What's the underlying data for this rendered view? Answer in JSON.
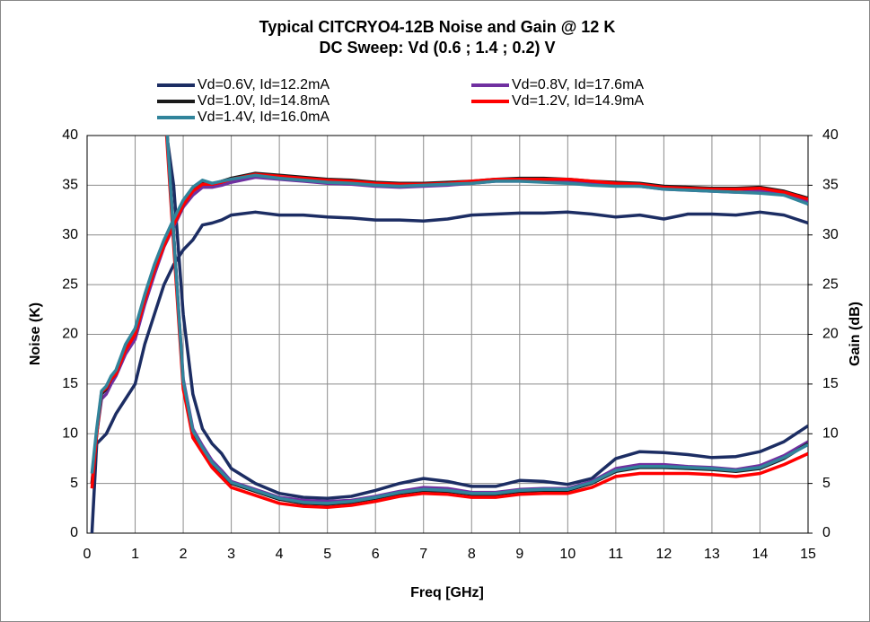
{
  "chart_data": {
    "type": "line",
    "title": "Typical CITCRYO4-12B  Noise and Gain @ 12 K",
    "subtitle": "DC Sweep: Vd (0.6 ; 1.4 ; 0.2) V",
    "xlabel": "Freq [GHz]",
    "ylabel": "Noise (K)",
    "y2label": "Gain (dB)",
    "x": [
      0.1,
      0.2,
      0.3,
      0.4,
      0.5,
      0.6,
      0.8,
      1,
      1.2,
      1.4,
      1.6,
      1.8,
      2,
      2.2,
      2.4,
      2.6,
      2.8,
      3,
      3.5,
      4,
      4.5,
      5,
      5.5,
      6,
      6.5,
      7,
      7.5,
      8,
      8.5,
      9,
      9.5,
      10,
      10.5,
      11,
      11.5,
      12,
      12.5,
      13,
      13.5,
      14,
      14.5,
      15
    ],
    "xlim": [
      0,
      15
    ],
    "xticks": [
      0,
      1,
      2,
      3,
      4,
      5,
      6,
      7,
      8,
      9,
      10,
      11,
      12,
      13,
      14,
      15
    ],
    "ylim": [
      0,
      40
    ],
    "yticks": [
      0,
      5,
      10,
      15,
      20,
      25,
      30,
      35,
      40
    ],
    "y2lim": [
      0,
      40
    ],
    "y2ticks": [
      0,
      5,
      10,
      15,
      20,
      25,
      30,
      35,
      40
    ],
    "grid": true,
    "series": [
      {
        "name": "Vd=0.6V, Id=12.2mA",
        "color": "#1c2d63",
        "values": [
          null,
          null,
          null,
          null,
          null,
          null,
          null,
          null,
          null,
          null,
          42,
          35,
          22,
          14,
          10.5,
          9,
          8,
          6.5,
          5,
          4,
          3.6,
          3.5,
          3.7,
          4.3,
          5,
          5.5,
          5.2,
          4.7,
          4.7,
          5.3,
          5.2,
          4.9,
          5.5,
          7.5,
          8.2,
          8.1,
          7.9,
          7.6,
          7.7,
          8.2,
          9.2,
          10.8
        ],
        "y2_values": [
          0,
          9,
          9.5,
          10,
          11,
          12,
          13.5,
          15,
          19,
          22,
          25,
          27,
          28.5,
          29.5,
          31,
          31.2,
          31.5,
          32,
          32.3,
          32,
          32,
          31.8,
          31.7,
          31.5,
          31.5,
          31.4,
          31.6,
          32,
          32.1,
          32.2,
          32.2,
          32.3,
          32.1,
          31.8,
          32,
          31.6,
          32.1,
          32.1,
          32,
          32.3,
          32,
          31.2
        ]
      },
      {
        "name": "Vd=0.8V, Id=17.6mA",
        "color": "#7030a0",
        "values": [
          null,
          null,
          null,
          null,
          null,
          null,
          null,
          null,
          null,
          null,
          45,
          30,
          15.5,
          10.5,
          8.8,
          7.3,
          6.3,
          5.2,
          4.4,
          3.6,
          3.3,
          3.2,
          3.3,
          3.7,
          4.2,
          4.6,
          4.5,
          4.1,
          4.1,
          4.4,
          4.5,
          4.5,
          5.2,
          6.5,
          6.9,
          6.9,
          6.7,
          6.6,
          6.4,
          6.8,
          7.8,
          9.2
        ],
        "y2_values": [
          5,
          10,
          13.5,
          14,
          15,
          15.8,
          18,
          19.5,
          23,
          26,
          28.8,
          30.8,
          32.8,
          34,
          34.8,
          34.8,
          35,
          35.3,
          35.8,
          35.6,
          35.4,
          35.2,
          35.1,
          34.9,
          34.8,
          34.9,
          35,
          35.2,
          35.4,
          35.4,
          35.4,
          35.3,
          35.1,
          35,
          34.9,
          34.6,
          34.5,
          34.4,
          34.3,
          34.4,
          34,
          33.4
        ]
      },
      {
        "name": "Vd=1.0V, Id=14.8mA",
        "color": "#1a1a1a",
        "values": [
          null,
          null,
          null,
          null,
          null,
          null,
          null,
          null,
          null,
          null,
          45,
          30,
          15,
          10,
          8.5,
          7,
          6,
          5,
          4.2,
          3.4,
          3,
          2.9,
          3.1,
          3.5,
          4,
          4.3,
          4.2,
          3.9,
          3.9,
          4.2,
          4.3,
          4.3,
          5,
          6.2,
          6.6,
          6.6,
          6.5,
          6.4,
          6.2,
          6.5,
          7.5,
          9
        ],
        "y2_values": [
          5,
          10,
          14,
          14.5,
          15.5,
          16,
          18.5,
          20,
          23.5,
          26.5,
          29,
          31,
          33,
          34.5,
          35.2,
          35.1,
          35.4,
          35.7,
          36.2,
          36,
          35.8,
          35.6,
          35.5,
          35.3,
          35.2,
          35.2,
          35.3,
          35.4,
          35.6,
          35.7,
          35.7,
          35.6,
          35.4,
          35.3,
          35.2,
          34.9,
          34.8,
          34.7,
          34.7,
          34.8,
          34.4,
          33.7
        ]
      },
      {
        "name": "Vd=1.2V, Id=14.9mA",
        "color": "#ff0000",
        "values": [
          null,
          null,
          null,
          null,
          null,
          null,
          null,
          null,
          null,
          null,
          44,
          29,
          14.5,
          9.6,
          8.1,
          6.6,
          5.6,
          4.6,
          3.8,
          3,
          2.7,
          2.6,
          2.8,
          3.2,
          3.7,
          4,
          3.9,
          3.6,
          3.6,
          3.9,
          4,
          4,
          4.6,
          5.7,
          6,
          6,
          6,
          5.9,
          5.7,
          6,
          6.9,
          8
        ],
        "y2_values": [
          4.5,
          10,
          14.2,
          14.6,
          15.5,
          16,
          18.4,
          20,
          23.4,
          26.4,
          28.9,
          31,
          33,
          34.4,
          35.1,
          35.1,
          35.3,
          35.6,
          36.1,
          35.9,
          35.7,
          35.5,
          35.4,
          35.2,
          35.1,
          35.1,
          35.2,
          35.4,
          35.6,
          35.6,
          35.6,
          35.6,
          35.4,
          35.2,
          35.1,
          34.8,
          34.7,
          34.6,
          34.6,
          34.7,
          34.3,
          33.6
        ]
      },
      {
        "name": "Vd=1.4V, Id=16.0mA",
        "color": "#31849b",
        "values": [
          null,
          null,
          null,
          null,
          null,
          null,
          null,
          null,
          null,
          null,
          45,
          30,
          15.3,
          10.3,
          8.6,
          7.1,
          6.1,
          5.1,
          4.3,
          3.5,
          3.1,
          3,
          3.2,
          3.6,
          4.1,
          4.4,
          4.3,
          4,
          4,
          4.3,
          4.4,
          4.4,
          5.1,
          6.3,
          6.7,
          6.7,
          6.6,
          6.5,
          6.3,
          6.6,
          7.6,
          8.9
        ],
        "y2_values": [
          6,
          10.5,
          14.3,
          14.8,
          15.8,
          16.4,
          19,
          20.6,
          24,
          27,
          29.5,
          31.6,
          33.5,
          34.8,
          35.5,
          35.2,
          35.4,
          35.6,
          36,
          35.7,
          35.5,
          35.3,
          35.2,
          35,
          34.9,
          35,
          35.1,
          35.2,
          35.4,
          35.4,
          35.3,
          35.2,
          35,
          34.9,
          34.9,
          34.6,
          34.5,
          34.4,
          34.3,
          34.2,
          34,
          33.1
        ]
      }
    ]
  }
}
